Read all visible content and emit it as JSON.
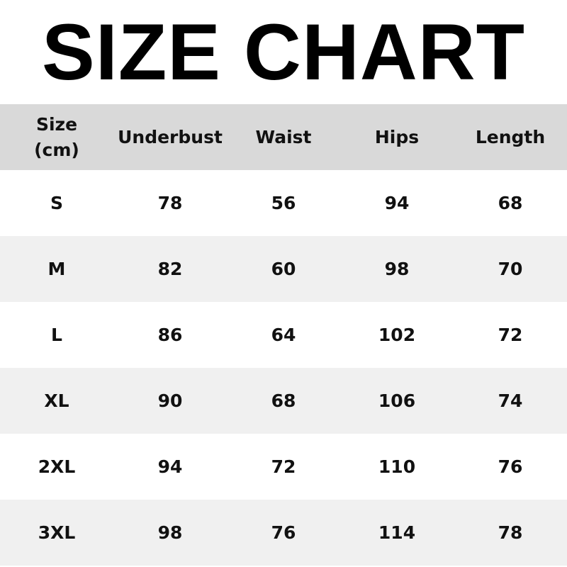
{
  "title": "SIZE CHART",
  "table": {
    "headers": [
      "Size\n(cm)",
      "Underbust",
      "Waist",
      "Hips",
      "Length"
    ],
    "header_size_line1": "Size",
    "header_size_line2": "(cm)",
    "rows": [
      [
        "S",
        "78",
        "56",
        "94",
        "68"
      ],
      [
        "M",
        "82",
        "60",
        "98",
        "70"
      ],
      [
        "L",
        "86",
        "64",
        "102",
        "72"
      ],
      [
        "XL",
        "90",
        "68",
        "106",
        "74"
      ],
      [
        "2XL",
        "94",
        "72",
        "110",
        "76"
      ],
      [
        "3XL",
        "98",
        "76",
        "114",
        "78"
      ]
    ]
  },
  "colors": {
    "header_bg": "#d9d9d9",
    "stripe_bg": "#f0f0f0",
    "text": "#111111"
  }
}
